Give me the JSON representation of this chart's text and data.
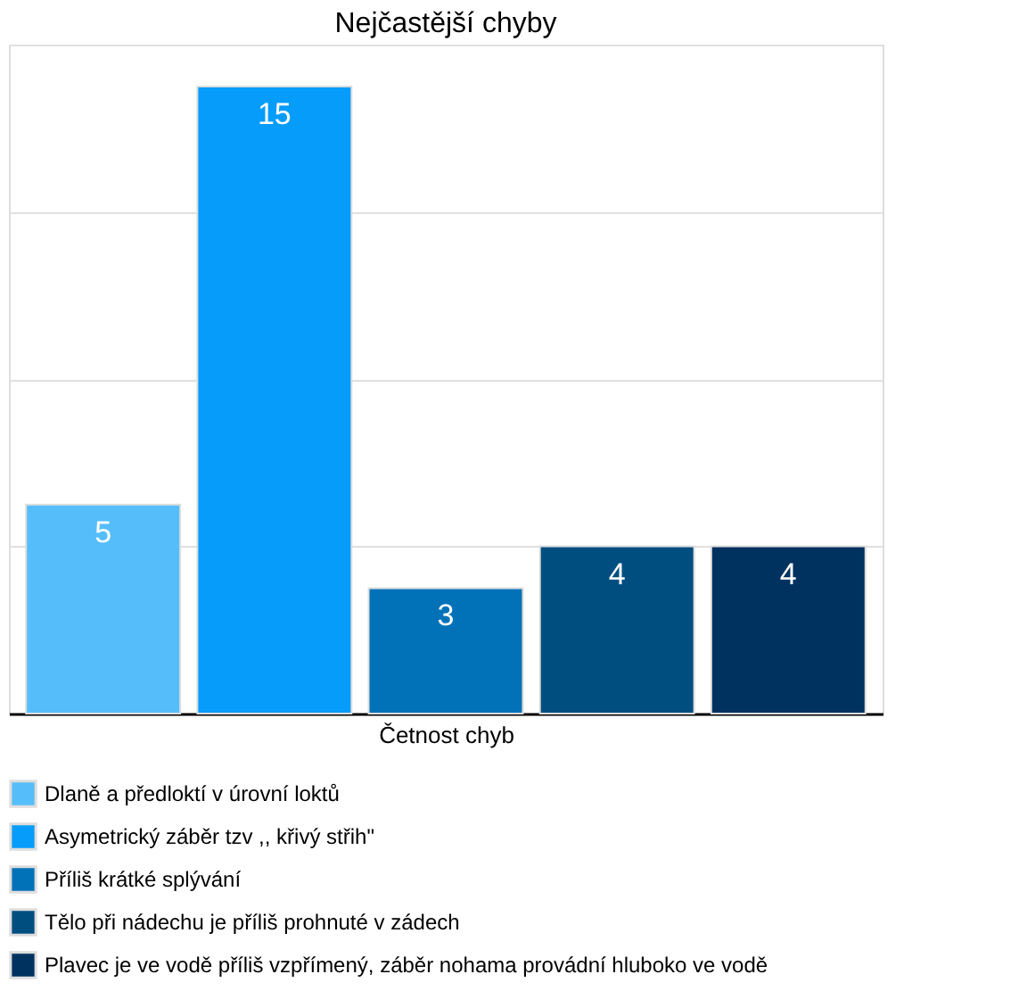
{
  "chart_data": {
    "type": "bar",
    "title": "Nejčastější chyby",
    "xlabel": "Četnost chyb",
    "categories": [
      null,
      null,
      null,
      null,
      null
    ],
    "stacked": true,
    "series": [
      {
        "name": "Dlaně a předloktí v úrovní loktů",
        "color": "#55befa",
        "values": [
          5,
          null,
          null,
          null,
          null
        ]
      },
      {
        "name": "Asymetrický záběr tzv ,, křivý střih\"",
        "color": "#069cfa",
        "values": [
          null,
          15,
          null,
          null,
          null
        ]
      },
      {
        "name": "Příliš krátké splývání",
        "color": "#0272b8",
        "values": [
          null,
          null,
          3,
          null,
          null
        ]
      },
      {
        "name": "Tělo při nádechu je příliš prohnuté v zádech",
        "color": "#004e80",
        "values": [
          null,
          null,
          null,
          4,
          null
        ]
      },
      {
        "name": "Plavec je ve vodě příliš vzpřímený, záběr nohama provádní hluboko ve vodě",
        "color": "#003260",
        "values": [
          null,
          null,
          null,
          null,
          4
        ]
      }
    ],
    "ylim": [
      0,
      16
    ],
    "yticks": [
      {
        "value": 0,
        "label": null
      },
      {
        "value": 4,
        "label": null
      },
      {
        "value": 8,
        "label": null
      },
      {
        "value": 12,
        "label": null
      },
      {
        "value": 16,
        "label": null
      }
    ],
    "tick_labels": false,
    "grid": "y",
    "legend": "bottom",
    "data_labels": true
  }
}
